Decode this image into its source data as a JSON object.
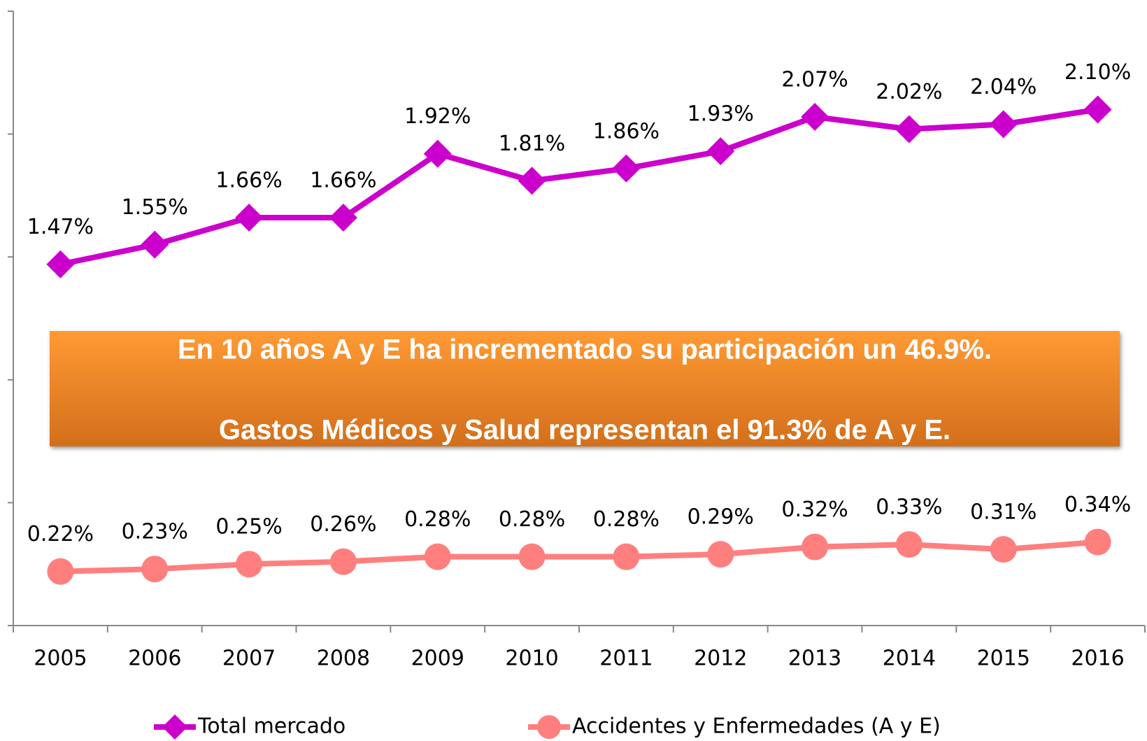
{
  "chart_data": {
    "type": "line",
    "categories": [
      "2005",
      "2006",
      "2007",
      "2008",
      "2009",
      "2010",
      "2011",
      "2012",
      "2013",
      "2014",
      "2015",
      "2016"
    ],
    "series": [
      {
        "name": "Total mercado",
        "color": "#cc00cc",
        "marker": "diamond",
        "values": [
          1.47,
          1.55,
          1.66,
          1.66,
          1.92,
          1.81,
          1.86,
          1.93,
          2.07,
          2.02,
          2.04,
          2.1
        ],
        "value_labels": [
          "1.47%",
          "1.55%",
          "1.66%",
          "1.66%",
          "1.92%",
          "1.81%",
          "1.86%",
          "1.93%",
          "2.07%",
          "2.02%",
          "2.04%",
          "2.10%"
        ]
      },
      {
        "name": "Accidentes y Enfermedades (A y E)",
        "color": "#ff7f7f",
        "marker": "circle",
        "values": [
          0.22,
          0.23,
          0.25,
          0.26,
          0.28,
          0.28,
          0.28,
          0.29,
          0.32,
          0.33,
          0.31,
          0.34
        ],
        "value_labels": [
          "0.22%",
          "0.23%",
          "0.25%",
          "0.26%",
          "0.28%",
          "0.28%",
          "0.28%",
          "0.29%",
          "0.32%",
          "0.33%",
          "0.31%",
          "0.34%"
        ]
      }
    ],
    "ylim": [
      0,
      2.5
    ],
    "yticks": [
      0,
      0.5,
      1,
      1.5,
      2,
      2.5
    ],
    "grid": false,
    "legend": "bottom",
    "annotations": [
      "En 10 años A y E ha incrementado su participación un 46.9%.",
      "Gastos Médicos y Salud representan el 91.3% de A y E."
    ]
  }
}
